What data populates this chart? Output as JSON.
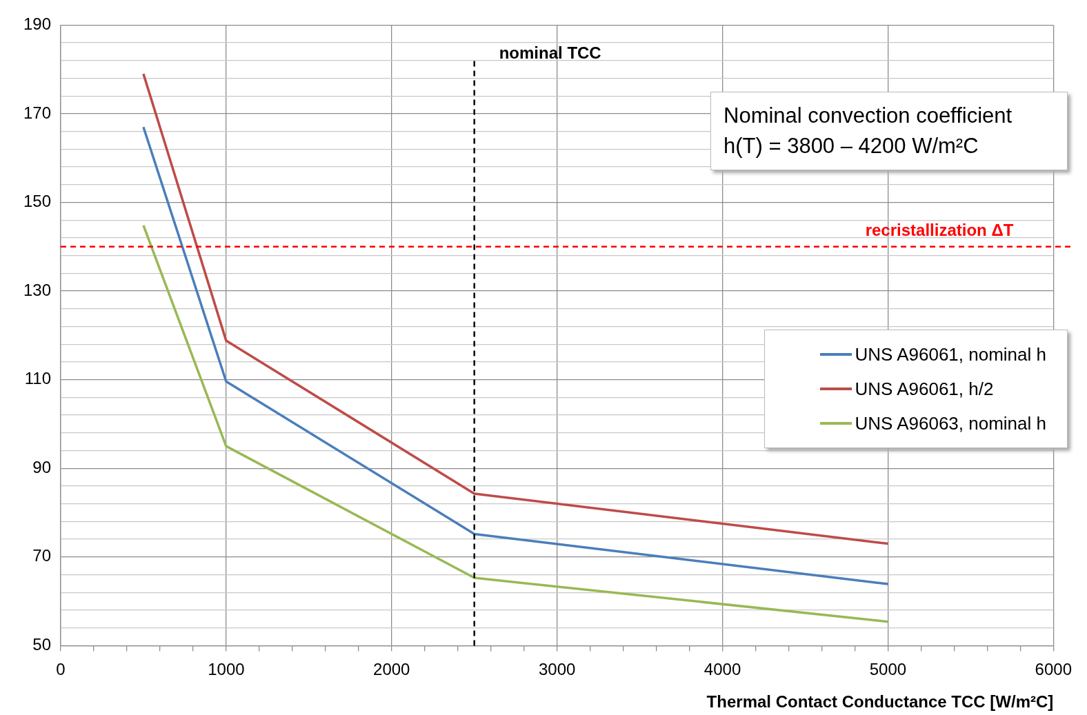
{
  "chart_data": {
    "type": "line",
    "xlabel": "Thermal Contact Conductance TCC [W/m²C]",
    "x": [
      500,
      1000,
      2500,
      5000
    ],
    "series": [
      {
        "name": "UNS A96061, nominal h",
        "color": "#4a7ebb",
        "values": [
          167,
          109.6,
          75.2,
          63.9
        ]
      },
      {
        "name": "UNS A96061, h/2",
        "color": "#be4b48",
        "values": [
          179,
          118.8,
          84.3,
          73
        ]
      },
      {
        "name": "UNS A96063, nominal h",
        "color": "#98b954",
        "values": [
          144.8,
          95,
          65.3,
          55.4
        ]
      }
    ],
    "xlim": [
      0,
      6000
    ],
    "xticks": [
      0,
      {
        "value": 200,
        "label": null
      },
      {
        "value": 400,
        "label": null
      },
      {
        "value": 600,
        "label": null
      },
      {
        "value": 800,
        "label": null
      },
      1000,
      {
        "value": 1200,
        "label": null
      },
      {
        "value": 1400,
        "label": null
      },
      {
        "value": 1600,
        "label": null
      },
      {
        "value": 1800,
        "label": null
      },
      2000,
      {
        "value": 2200,
        "label": null
      },
      {
        "value": 2400,
        "label": null
      },
      {
        "value": 2600,
        "label": null
      },
      {
        "value": 2800,
        "label": null
      },
      3000,
      {
        "value": 3200,
        "label": null
      },
      {
        "value": 3400,
        "label": null
      },
      {
        "value": 3600,
        "label": null
      },
      {
        "value": 3800,
        "label": null
      },
      4000,
      {
        "value": 4200,
        "label": null
      },
      {
        "value": 4400,
        "label": null
      },
      {
        "value": 4600,
        "label": null
      },
      {
        "value": 4800,
        "label": null
      },
      5000,
      {
        "value": 5200,
        "label": null
      },
      {
        "value": 5400,
        "label": null
      },
      {
        "value": 5600,
        "label": null
      },
      {
        "value": 5800,
        "label": null
      },
      6000
    ],
    "ylim": [
      50,
      190
    ],
    "yticks": [
      50,
      {
        "value": 54,
        "label": null
      },
      {
        "value": 58,
        "label": null
      },
      {
        "value": 62,
        "label": null
      },
      {
        "value": 66,
        "label": null
      },
      70,
      {
        "value": 74,
        "label": null
      },
      {
        "value": 78,
        "label": null
      },
      {
        "value": 82,
        "label": null
      },
      {
        "value": 86,
        "label": null
      },
      90,
      {
        "value": 94,
        "label": null
      },
      {
        "value": 98,
        "label": null
      },
      {
        "value": 102,
        "label": null
      },
      {
        "value": 106,
        "label": null
      },
      110,
      {
        "value": 114,
        "label": null
      },
      {
        "value": 118,
        "label": null
      },
      {
        "value": 122,
        "label": null
      },
      {
        "value": 126,
        "label": null
      },
      130,
      {
        "value": 134,
        "label": null
      },
      {
        "value": 138,
        "label": null
      },
      {
        "value": 142,
        "label": null
      },
      {
        "value": 146,
        "label": null
      },
      150,
      {
        "value": 154,
        "label": null
      },
      {
        "value": 158,
        "label": null
      },
      {
        "value": 162,
        "label": null
      },
      {
        "value": 166,
        "label": null
      },
      170,
      {
        "value": 174,
        "label": null
      },
      {
        "value": 178,
        "label": null
      },
      {
        "value": 182,
        "label": null
      },
      {
        "value": 186,
        "label": null
      },
      190
    ],
    "grid": true,
    "legend": "right",
    "marker": "none",
    "line_style": "solid",
    "ref_lines": [
      {
        "axis": "y",
        "value": 140,
        "label": "recristallization ΔT",
        "color": "#ff0000",
        "line_style": "dashed"
      },
      {
        "axis": "x",
        "value": 2500,
        "label": "nominal TCC",
        "color": "#000000",
        "line_style": "dashed"
      }
    ],
    "annotations": [
      "Nominal convection coefficient h(T) = 3800 – 4200 W/m²C"
    ]
  }
}
